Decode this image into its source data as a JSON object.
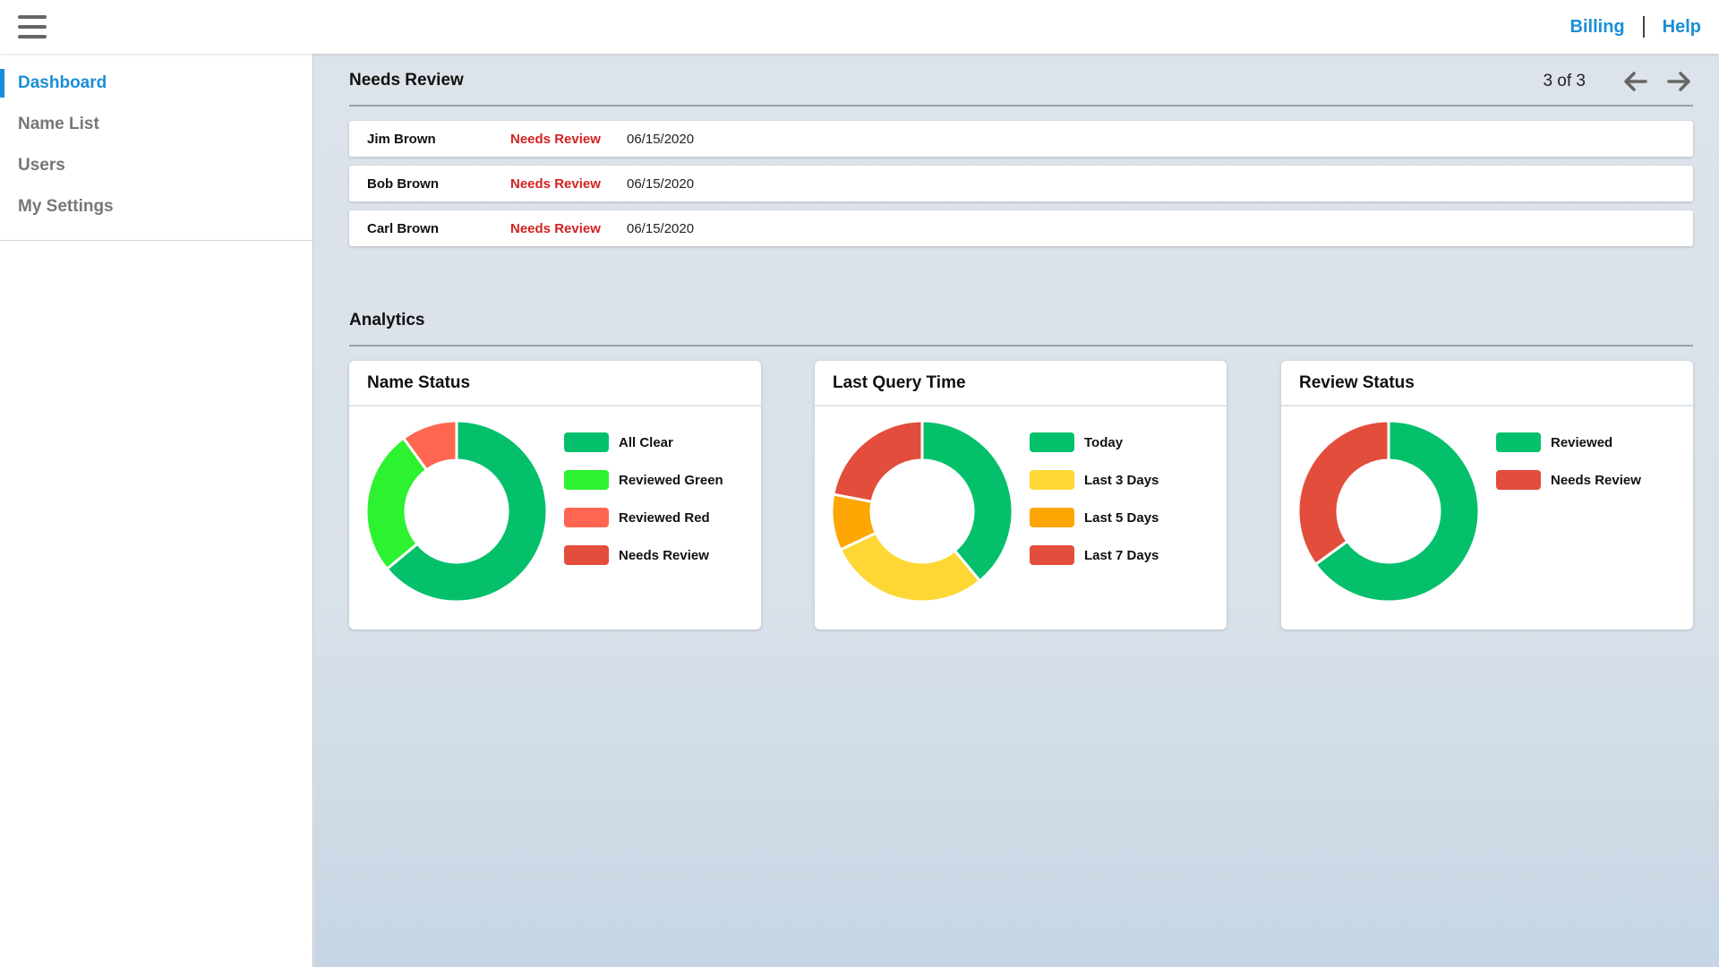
{
  "header": {
    "menu_icon": "hamburger-menu-icon",
    "links": [
      "Billing",
      "Help"
    ]
  },
  "sidebar": {
    "items": [
      {
        "label": "Dashboard",
        "active": true
      },
      {
        "label": "Name List",
        "active": false
      },
      {
        "label": "Users",
        "active": false
      },
      {
        "label": "My Settings",
        "active": false
      }
    ]
  },
  "needs_review": {
    "title": "Needs Review",
    "pager": "3 of 3",
    "prev_icon": "arrow-left-icon",
    "next_icon": "arrow-right-icon",
    "rows": [
      {
        "name": "Jim Brown",
        "status": "Needs Review",
        "date": "06/15/2020"
      },
      {
        "name": "Bob Brown",
        "status": "Needs Review",
        "date": "06/15/2020"
      },
      {
        "name": "Carl Brown",
        "status": "Needs Review",
        "date": "06/15/2020"
      }
    ]
  },
  "analytics": {
    "title": "Analytics"
  },
  "colors": {
    "accent": "#1a8fd6",
    "status_red": "#d32222"
  },
  "chart_data": [
    {
      "type": "pie",
      "title": "Name Status",
      "categories": [
        "All Clear",
        "Reviewed Green",
        "Reviewed Red",
        "Needs Review"
      ],
      "values": [
        64,
        26,
        10,
        0
      ],
      "colors": [
        "#05c06b",
        "#2cf230",
        "#ff6651",
        "#e34d3b"
      ]
    },
    {
      "type": "pie",
      "title": "Last Query Time",
      "categories": [
        "Today",
        "Last 3 Days",
        "Last 5 Days",
        "Last 7 Days"
      ],
      "values": [
        39,
        29,
        10,
        22
      ],
      "colors": [
        "#05c06b",
        "#fed735",
        "#fea603",
        "#e34d3b"
      ]
    },
    {
      "type": "pie",
      "title": "Review Status",
      "categories": [
        "Reviewed",
        "Needs Review"
      ],
      "values": [
        65,
        35
      ],
      "colors": [
        "#05c06b",
        "#e34d3b"
      ]
    }
  ]
}
